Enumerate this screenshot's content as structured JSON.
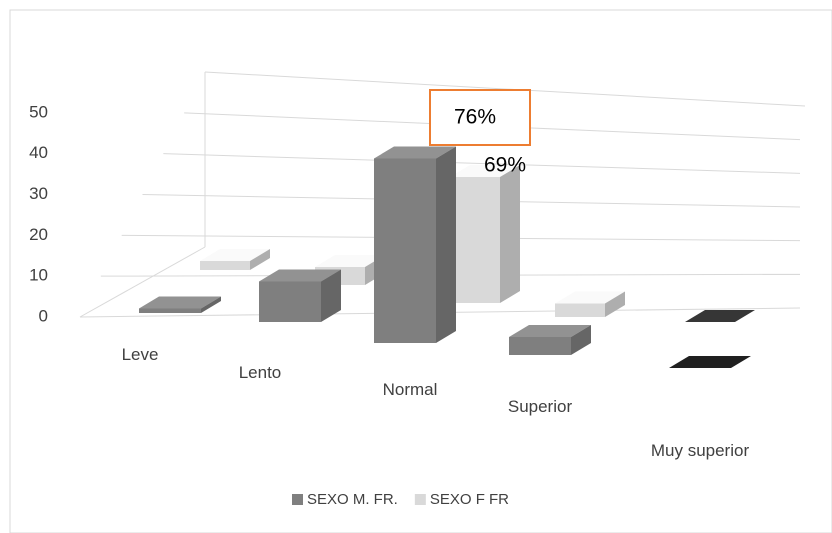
{
  "chart_data": {
    "type": "bar3d",
    "categories": [
      "Leve",
      "Lento",
      "Normal",
      "Superior",
      "Muy superior"
    ],
    "series": [
      {
        "name": "SEXO M. FR.",
        "color": "#7f7f7f",
        "values": [
          1,
          9,
          41,
          4,
          0
        ]
      },
      {
        "name": "SEXO F FR",
        "color": "#d9d9d9",
        "values": [
          2,
          4,
          28,
          3,
          0
        ]
      }
    ],
    "annotations": [
      "76%",
      "69%"
    ],
    "ylim": [
      0,
      60
    ],
    "yticks": [
      0,
      10,
      20,
      30,
      40,
      50
    ],
    "grid": true,
    "legend": "bottom"
  }
}
